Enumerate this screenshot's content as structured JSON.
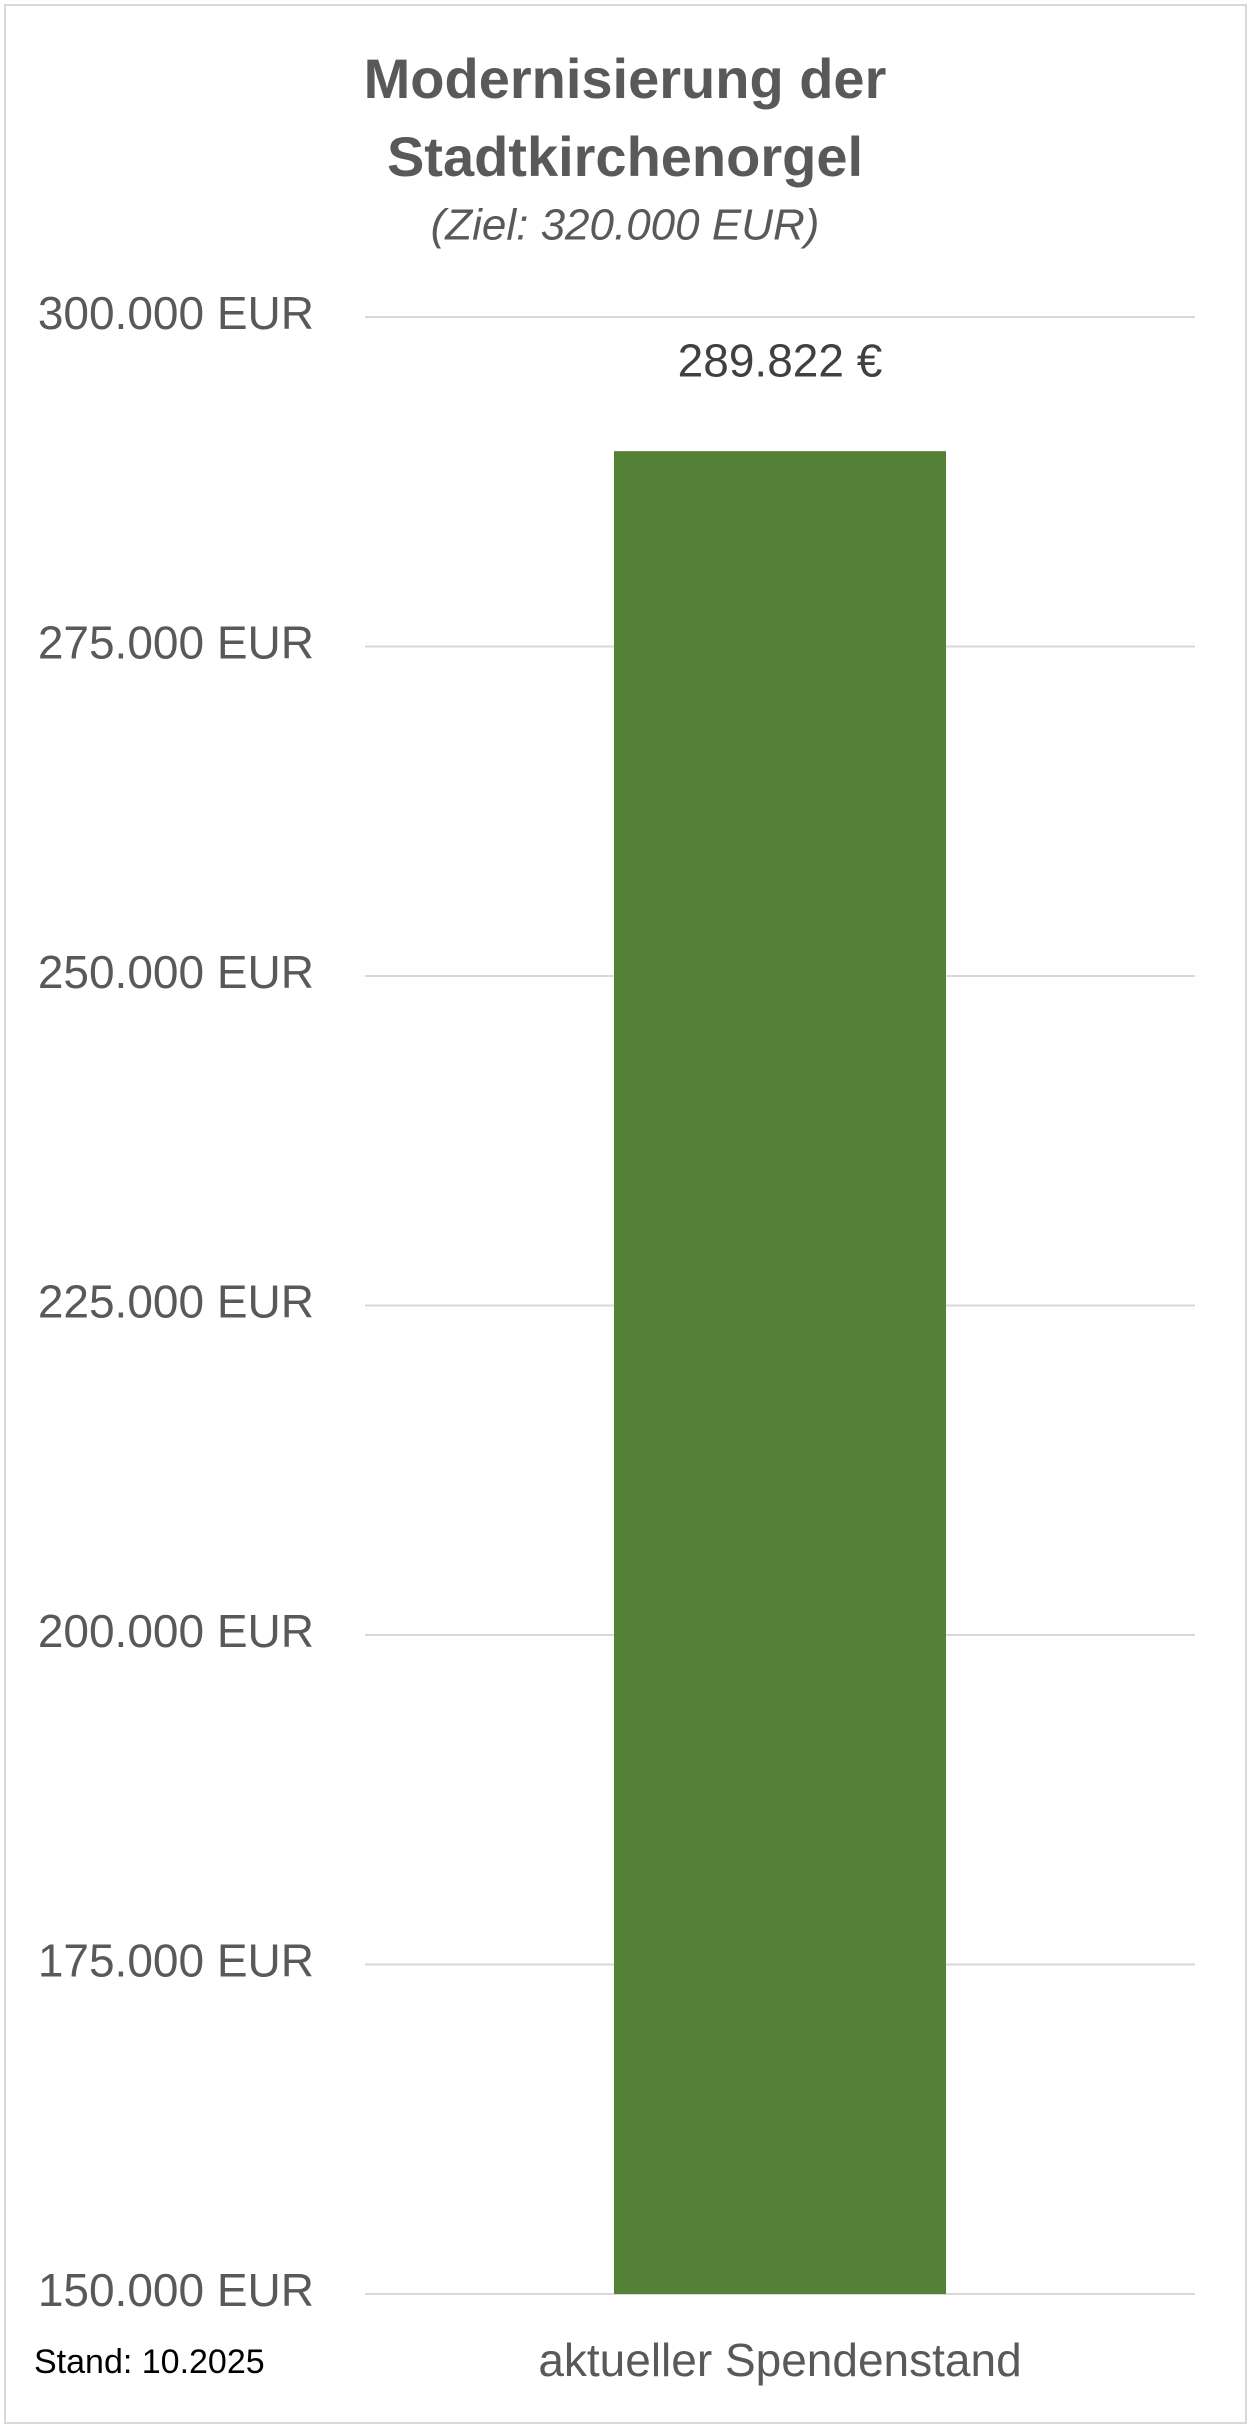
{
  "chart_data": {
    "type": "bar",
    "title": "Modernisierung der Stadtkirchenorgel",
    "subtitle": "(Ziel: 320.000 EUR)",
    "note": "Stand: 10.2025",
    "categories": [
      "aktueller Spendenstand"
    ],
    "values": [
      289822
    ],
    "value_labels": [
      "289.822 €"
    ],
    "color": "#538135",
    "ylim": [
      150000,
      300000
    ],
    "yticks": [
      {
        "value": 150000,
        "label": "150.000 EUR"
      },
      {
        "value": 175000,
        "label": "175.000 EUR"
      },
      {
        "value": 200000,
        "label": "200.000 EUR"
      },
      {
        "value": 225000,
        "label": "225.000 EUR"
      },
      {
        "value": 250000,
        "label": "250.000 EUR"
      },
      {
        "value": 275000,
        "label": "275.000 EUR"
      },
      {
        "value": 300000,
        "label": "300.000 EUR"
      }
    ],
    "grid": true
  }
}
